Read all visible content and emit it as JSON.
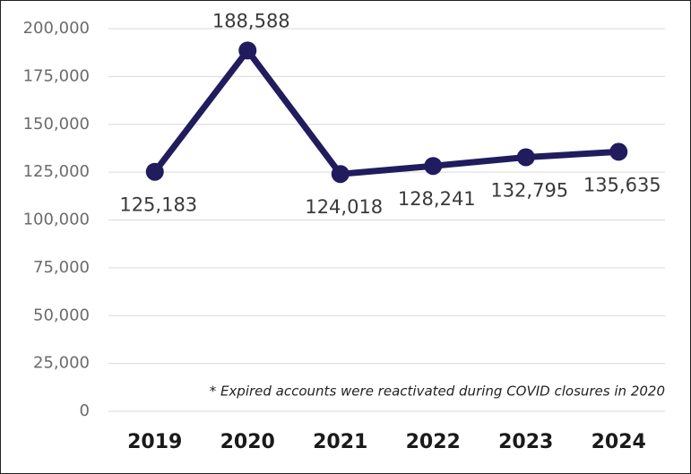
{
  "chart_data": {
    "type": "line",
    "categories": [
      "2019",
      "2020",
      "2021",
      "2022",
      "2023",
      "2024"
    ],
    "series": [
      {
        "name": "Accounts",
        "color": "#201c5e",
        "values": [
          125183,
          188588,
          124018,
          128241,
          132795,
          135635
        ],
        "value_labels": [
          "125,183",
          "188,588",
          "124,018",
          "128,241",
          "132,795",
          "135,635"
        ]
      }
    ],
    "ylim": [
      0,
      200000
    ],
    "yticks": [
      0,
      {
        "value": 25000,
        "label": "25,000"
      },
      {
        "value": 50000,
        "label": "50,000"
      },
      {
        "value": 75000,
        "label": "75,000"
      },
      {
        "value": 100000,
        "label": "100,000"
      },
      {
        "value": 125000,
        "label": "125,000"
      },
      {
        "value": 150000,
        "label": "150,000"
      },
      {
        "value": 175000,
        "label": "175,000"
      },
      {
        "value": 200000,
        "label": "200,000"
      }
    ],
    "grid": true,
    "annotation": "* Expired accounts were reactivated during COVID closures in 2020"
  }
}
